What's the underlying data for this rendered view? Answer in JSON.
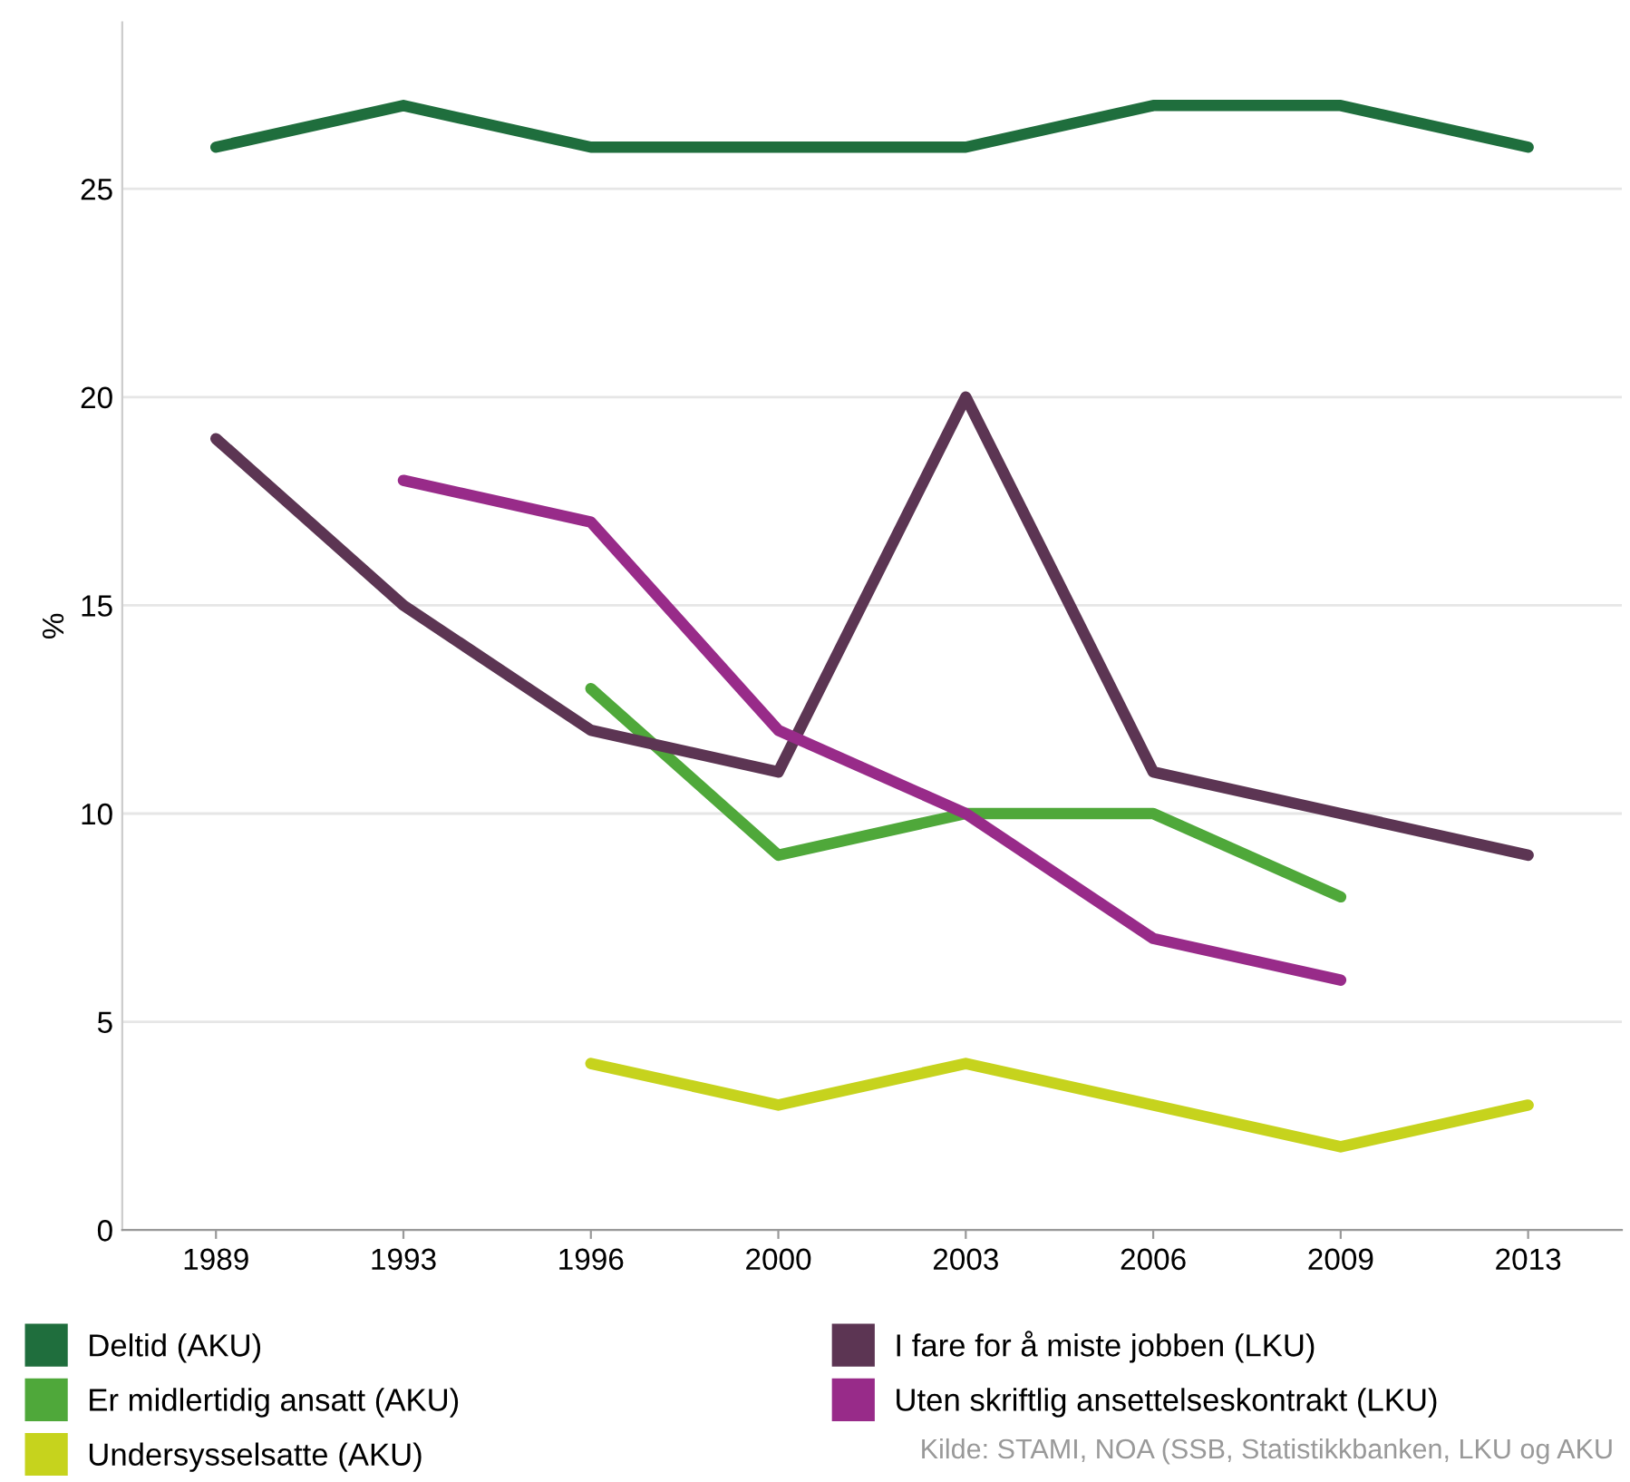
{
  "chart_data": {
    "type": "line",
    "ylabel": "%",
    "categories": [
      "1989",
      "1993",
      "1996",
      "2000",
      "2003",
      "2006",
      "2009",
      "2013"
    ],
    "ylim": [
      0,
      29
    ],
    "yticks": [
      0,
      5,
      10,
      15,
      20,
      25
    ],
    "grid": "y",
    "legend": "bottom",
    "marker": "none",
    "line_style": "solid",
    "series": [
      {
        "name": "Deltid (AKU)",
        "color": "#1f6e3d",
        "values": [
          26,
          27,
          26,
          26,
          26,
          27,
          27,
          26
        ]
      },
      {
        "name": "Er midlertidig ansatt (AKU)",
        "color": "#4fa83a",
        "values": [
          null,
          null,
          13,
          9,
          10,
          10,
          8,
          null
        ]
      },
      {
        "name": "Undersysselsatte (AKU)",
        "color": "#c6d31d",
        "values": [
          null,
          null,
          4,
          3,
          4,
          3,
          2,
          3
        ]
      },
      {
        "name": "I fare for å miste jobben (LKU)",
        "color": "#5c3553",
        "values": [
          19,
          15,
          12,
          11,
          20,
          11,
          10,
          9
        ]
      },
      {
        "name": "Uten skriftlig ansettelseskontrakt (LKU)",
        "color": "#982b89",
        "values": [
          null,
          18,
          17,
          12,
          10,
          7,
          6,
          null
        ]
      }
    ],
    "annotations": [
      "Kilde: STAMI, NOA (SSB, Statistikkbanken, LKU og AKU"
    ]
  }
}
